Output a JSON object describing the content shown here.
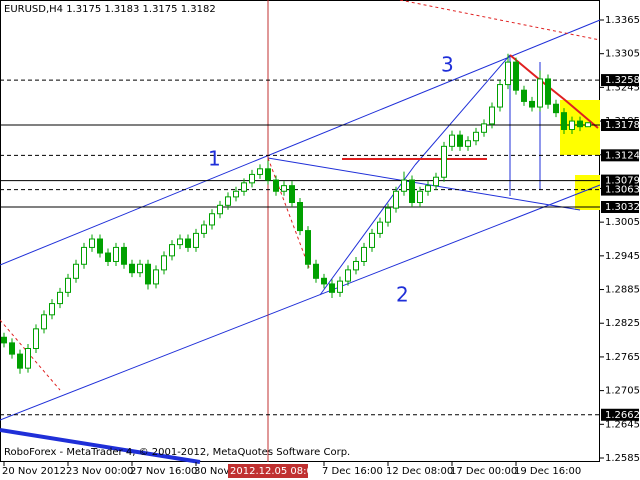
{
  "chart_data": {
    "type": "candlestick",
    "title": "EURUSD,H4  1.3175 1.3183 1.3175 1.3182",
    "footer": "RoboForex - MetaTrader 4, © 2001-2012, MetaQuotes Software Corp.",
    "cursor_label": "2012.12.05 08:00",
    "color": "#00a000",
    "categories": [
      "20 Nov 2012",
      null,
      null,
      null,
      null,
      null,
      null,
      null,
      "23 Nov 00:00",
      null,
      null,
      null,
      null,
      null,
      null,
      null,
      "27 Nov 16:00",
      null,
      null,
      null,
      null,
      null,
      null,
      null,
      "30 Nov",
      null,
      null,
      null,
      null,
      null,
      null,
      null,
      null,
      null,
      null,
      null,
      null,
      null,
      null,
      null,
      "7 Dec 16:00",
      null,
      null,
      null,
      null,
      null,
      null,
      null,
      "12 Dec 08:00",
      null,
      null,
      null,
      null,
      null,
      null,
      null,
      "17 Dec 00:00",
      null,
      null,
      null,
      null,
      null,
      null,
      null,
      "19 Dec 16:00",
      null,
      null,
      null,
      null,
      null,
      null,
      null,
      null,
      null
    ],
    "open": [
      1.28,
      1.279,
      1.277,
      1.2745,
      1.278,
      1.2815,
      1.284,
      1.286,
      1.288,
      1.2905,
      1.293,
      1.296,
      1.2975,
      1.295,
      1.2935,
      1.296,
      1.293,
      1.2915,
      1.293,
      1.2895,
      1.292,
      1.2945,
      1.2965,
      1.2975,
      1.296,
      1.2985,
      1.3,
      1.302,
      1.3035,
      1.305,
      1.306,
      1.3075,
      1.309,
      1.31,
      1.308,
      1.306,
      1.307,
      1.304,
      1.299,
      1.293,
      1.2905,
      1.2895,
      1.288,
      1.29,
      1.292,
      1.2935,
      1.296,
      1.2985,
      1.3005,
      1.303,
      1.306,
      1.308,
      1.304,
      1.306,
      1.307,
      1.3085,
      1.314,
      1.316,
      1.314,
      1.315,
      1.3165,
      1.318,
      1.321,
      1.325,
      1.329,
      1.324,
      1.322,
      1.321,
      1.326,
      1.3215,
      1.32,
      1.317,
      1.3185,
      1.3175
    ],
    "high": [
      1.2808,
      1.2798,
      1.2778,
      1.2788,
      1.2823,
      1.2848,
      1.2868,
      1.2888,
      1.2913,
      1.2938,
      1.2968,
      1.2983,
      1.2983,
      1.2958,
      1.2968,
      1.2968,
      1.2938,
      1.2938,
      1.2938,
      1.2928,
      1.2953,
      1.2973,
      1.2983,
      1.2983,
      1.2993,
      1.3008,
      1.3028,
      1.3043,
      1.3058,
      1.3068,
      1.3083,
      1.3098,
      1.3108,
      1.3115,
      1.3088,
      1.3078,
      1.3078,
      1.3048,
      1.2998,
      1.2938,
      1.2913,
      1.2903,
      1.2908,
      1.2928,
      1.2943,
      1.2968,
      1.2993,
      1.3013,
      1.3038,
      1.3068,
      1.3095,
      1.3088,
      1.3068,
      1.3078,
      1.3093,
      1.3148,
      1.3168,
      1.3168,
      1.3158,
      1.3173,
      1.3188,
      1.3218,
      1.3258,
      1.3305,
      1.3298,
      1.3248,
      1.3228,
      1.3275,
      1.3268,
      1.3223,
      1.3208,
      1.3193,
      1.3193,
      1.3183
    ],
    "low": [
      1.2782,
      1.2762,
      1.2735,
      1.2737,
      1.2772,
      1.2807,
      1.2832,
      1.2852,
      1.2872,
      1.2897,
      1.2922,
      1.2952,
      1.2942,
      1.2927,
      1.2927,
      1.2922,
      1.2907,
      1.2907,
      1.2885,
      1.2887,
      1.2912,
      1.2937,
      1.2957,
      1.2952,
      1.2952,
      1.2977,
      1.2992,
      1.3012,
      1.3027,
      1.3042,
      1.3052,
      1.3067,
      1.3082,
      1.3072,
      1.3052,
      1.3052,
      1.3032,
      1.2982,
      1.2922,
      1.2897,
      1.2887,
      1.287,
      1.2872,
      1.2892,
      1.2912,
      1.2927,
      1.2952,
      1.2977,
      1.2997,
      1.3022,
      1.3052,
      1.3032,
      1.3032,
      1.3052,
      1.3062,
      1.3077,
      1.3132,
      1.3132,
      1.3132,
      1.3142,
      1.3157,
      1.3172,
      1.3202,
      1.3242,
      1.3232,
      1.3212,
      1.3202,
      1.3202,
      1.3207,
      1.3192,
      1.3162,
      1.3162,
      1.3167,
      1.3175
    ],
    "close": [
      1.279,
      1.277,
      1.2745,
      1.278,
      1.2815,
      1.284,
      1.286,
      1.288,
      1.2905,
      1.293,
      1.296,
      1.2975,
      1.295,
      1.2935,
      1.296,
      1.293,
      1.2915,
      1.293,
      1.2895,
      1.292,
      1.2945,
      1.2965,
      1.2975,
      1.296,
      1.2985,
      1.3,
      1.302,
      1.3035,
      1.305,
      1.306,
      1.3075,
      1.309,
      1.31,
      1.308,
      1.306,
      1.307,
      1.304,
      1.299,
      1.293,
      1.2905,
      1.2895,
      1.288,
      1.29,
      1.292,
      1.2935,
      1.296,
      1.2985,
      1.3005,
      1.303,
      1.306,
      1.308,
      1.304,
      1.306,
      1.307,
      1.3085,
      1.314,
      1.316,
      1.314,
      1.315,
      1.3165,
      1.318,
      1.321,
      1.325,
      1.329,
      1.324,
      1.322,
      1.321,
      1.326,
      1.3215,
      1.32,
      1.317,
      1.3185,
      1.3175,
      1.3182
    ],
    "ylim": [
      1.2585,
      1.3365
    ],
    "yticks": [
      1.3365,
      1.3305,
      1.3245,
      1.3185,
      1.3125,
      1.3065,
      1.3005,
      1.2945,
      1.2885,
      1.2825,
      1.2765,
      1.2705,
      1.2645,
      1.2585
    ],
    "levels": [
      1.3258,
      1.3178,
      1.3124,
      1.3079,
      1.3063,
      1.3032,
      1.2662
    ],
    "annotations": [
      "1",
      "2",
      "3"
    ]
  }
}
